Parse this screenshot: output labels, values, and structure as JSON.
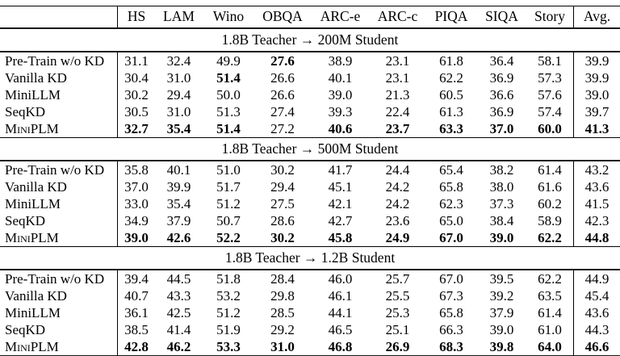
{
  "table": {
    "columns": [
      "HS",
      "LAM",
      "Wino",
      "OBQA",
      "ARC-e",
      "ARC-c",
      "PIQA",
      "SIQA",
      "Story",
      "Avg."
    ],
    "sections": [
      {
        "title": "1.8B Teacher → 200M Student",
        "rows": [
          {
            "label": "Pre-Train w/o KD",
            "smallcaps": false,
            "values": [
              "31.1",
              "32.4",
              "49.9",
              "27.6",
              "38.9",
              "23.1",
              "61.8",
              "36.4",
              "58.1",
              "39.9"
            ],
            "bold": [
              false,
              false,
              false,
              true,
              false,
              false,
              false,
              false,
              false,
              false
            ]
          },
          {
            "label": "Vanilla KD",
            "smallcaps": false,
            "values": [
              "30.4",
              "31.0",
              "51.4",
              "26.6",
              "40.1",
              "23.1",
              "62.2",
              "36.9",
              "57.3",
              "39.9"
            ],
            "bold": [
              false,
              false,
              true,
              false,
              false,
              false,
              false,
              false,
              false,
              false
            ]
          },
          {
            "label": "MiniLLM",
            "smallcaps": false,
            "values": [
              "30.2",
              "29.4",
              "50.0",
              "26.6",
              "39.0",
              "21.3",
              "60.5",
              "36.6",
              "57.6",
              "39.0"
            ],
            "bold": [
              false,
              false,
              false,
              false,
              false,
              false,
              false,
              false,
              false,
              false
            ]
          },
          {
            "label": "SeqKD",
            "smallcaps": false,
            "values": [
              "30.5",
              "31.0",
              "51.3",
              "27.4",
              "39.3",
              "22.4",
              "61.3",
              "36.9",
              "57.4",
              "39.7"
            ],
            "bold": [
              false,
              false,
              false,
              false,
              false,
              false,
              false,
              false,
              false,
              false
            ]
          },
          {
            "label": "MiniPLM",
            "smallcaps": true,
            "values": [
              "32.7",
              "35.4",
              "51.4",
              "27.2",
              "40.6",
              "23.7",
              "63.3",
              "37.0",
              "60.0",
              "41.3"
            ],
            "bold": [
              true,
              true,
              true,
              false,
              true,
              true,
              true,
              true,
              true,
              true
            ]
          }
        ]
      },
      {
        "title": "1.8B Teacher → 500M Student",
        "rows": [
          {
            "label": "Pre-Train w/o KD",
            "smallcaps": false,
            "values": [
              "35.8",
              "40.1",
              "51.0",
              "30.2",
              "41.7",
              "24.4",
              "65.4",
              "38.2",
              "61.4",
              "43.2"
            ],
            "bold": [
              false,
              false,
              false,
              false,
              false,
              false,
              false,
              false,
              false,
              false
            ]
          },
          {
            "label": "Vanilla KD",
            "smallcaps": false,
            "values": [
              "37.0",
              "39.9",
              "51.7",
              "29.4",
              "45.1",
              "24.2",
              "65.8",
              "38.0",
              "61.6",
              "43.6"
            ],
            "bold": [
              false,
              false,
              false,
              false,
              false,
              false,
              false,
              false,
              false,
              false
            ]
          },
          {
            "label": "MiniLLM",
            "smallcaps": false,
            "values": [
              "33.0",
              "35.4",
              "51.2",
              "27.5",
              "42.1",
              "24.2",
              "62.3",
              "37.3",
              "60.2",
              "41.5"
            ],
            "bold": [
              false,
              false,
              false,
              false,
              false,
              false,
              false,
              false,
              false,
              false
            ]
          },
          {
            "label": "SeqKD",
            "smallcaps": false,
            "values": [
              "34.9",
              "37.9",
              "50.7",
              "28.6",
              "42.7",
              "23.6",
              "65.0",
              "38.4",
              "58.9",
              "42.3"
            ],
            "bold": [
              false,
              false,
              false,
              false,
              false,
              false,
              false,
              false,
              false,
              false
            ]
          },
          {
            "label": "MiniPLM",
            "smallcaps": true,
            "values": [
              "39.0",
              "42.6",
              "52.2",
              "30.2",
              "45.8",
              "24.9",
              "67.0",
              "39.0",
              "62.2",
              "44.8"
            ],
            "bold": [
              true,
              true,
              true,
              true,
              true,
              true,
              true,
              true,
              true,
              true
            ]
          }
        ]
      },
      {
        "title": "1.8B Teacher → 1.2B Student",
        "rows": [
          {
            "label": "Pre-Train w/o KD",
            "smallcaps": false,
            "values": [
              "39.4",
              "44.5",
              "51.8",
              "28.4",
              "46.0",
              "25.7",
              "67.0",
              "39.5",
              "62.2",
              "44.9"
            ],
            "bold": [
              false,
              false,
              false,
              false,
              false,
              false,
              false,
              false,
              false,
              false
            ]
          },
          {
            "label": "Vanilla KD",
            "smallcaps": false,
            "values": [
              "40.7",
              "43.3",
              "53.2",
              "29.8",
              "46.1",
              "25.5",
              "67.3",
              "39.2",
              "63.5",
              "45.4"
            ],
            "bold": [
              false,
              false,
              false,
              false,
              false,
              false,
              false,
              false,
              false,
              false
            ]
          },
          {
            "label": "MiniLLM",
            "smallcaps": false,
            "values": [
              "36.1",
              "42.5",
              "51.2",
              "28.5",
              "44.1",
              "25.3",
              "65.8",
              "37.9",
              "61.4",
              "43.6"
            ],
            "bold": [
              false,
              false,
              false,
              false,
              false,
              false,
              false,
              false,
              false,
              false
            ]
          },
          {
            "label": "SeqKD",
            "smallcaps": false,
            "values": [
              "38.5",
              "41.4",
              "51.9",
              "29.2",
              "46.5",
              "25.1",
              "66.3",
              "39.0",
              "61.0",
              "44.3"
            ],
            "bold": [
              false,
              false,
              false,
              false,
              false,
              false,
              false,
              false,
              false,
              false
            ]
          },
          {
            "label": "MiniPLM",
            "smallcaps": true,
            "values": [
              "42.8",
              "46.2",
              "53.3",
              "31.0",
              "46.8",
              "26.9",
              "68.3",
              "39.8",
              "64.0",
              "46.6"
            ],
            "bold": [
              true,
              true,
              true,
              true,
              true,
              true,
              true,
              true,
              true,
              true
            ]
          }
        ]
      }
    ]
  }
}
